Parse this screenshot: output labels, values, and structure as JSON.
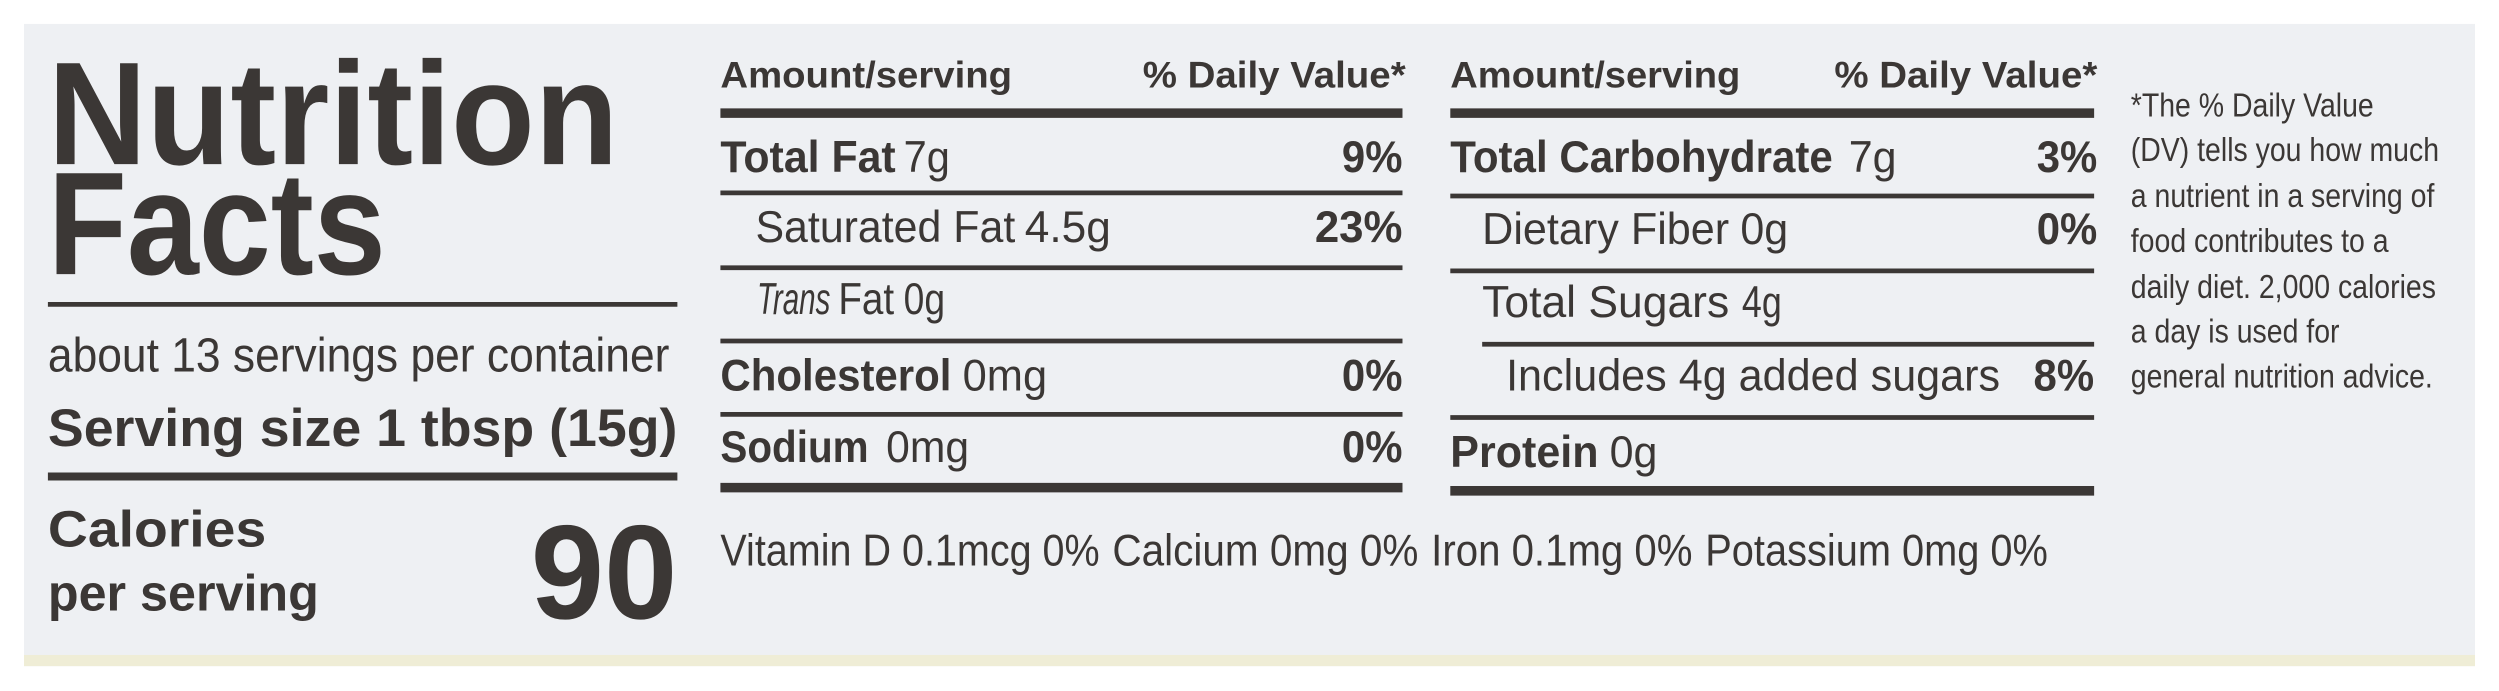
{
  "title": [
    "Nutrition",
    "Facts"
  ],
  "servings": "about 13 servings per container",
  "serving_size": "Serving size 1 tbsp (15g)",
  "calories": {
    "label": [
      "Calories",
      "per serving"
    ],
    "value": 90
  },
  "panels": [
    {
      "header": {
        "amount": "Amount/serving",
        "daily_value": "% Daily Value*"
      },
      "rows": [
        {
          "name": "Total Fat",
          "amount": "7g",
          "daily_value": "9%"
        },
        {
          "name": "Saturated Fat",
          "amount": "4.5g",
          "daily_value": "23%"
        },
        {
          "name_italic": "Trans",
          "name": "Fat",
          "amount": "0g"
        },
        {
          "name": "Cholesterol",
          "amount": "0mg",
          "daily_value": "0%"
        },
        {
          "name": "Sodium",
          "amount": "0mg",
          "daily_value": "0%"
        }
      ]
    },
    {
      "header": {
        "amount": "Amount/serving",
        "daily_value": "% Daily Value*"
      },
      "rows": [
        {
          "name": "Total Carbohydrate",
          "amount": "7g",
          "daily_value": "3%"
        },
        {
          "name": "Dietary Fiber",
          "amount": "0g",
          "daily_value": "0%"
        },
        {
          "name": "Total Sugars",
          "amount": "4g"
        },
        {
          "name": "Includes 4g added sugars",
          "daily_value": "8%"
        },
        {
          "name": "Protein",
          "amount": "0g"
        }
      ]
    }
  ],
  "vitamins": [
    "Vitamin D 0.1mcg 0%",
    "Calcium 0mg 0%",
    "Iron 0.1mg 0%",
    "Potassium 0mg 0%"
  ],
  "footnote": "*The % Daily Value (DV) tells you how much a nutrient in a serving of food contributes to a daily diet. 2,000 calories a day is used for general nutrition advice."
}
